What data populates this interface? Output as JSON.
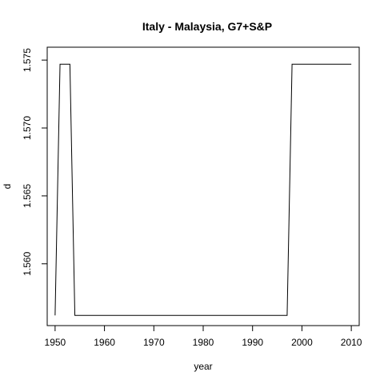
{
  "chart_data": {
    "type": "line",
    "title": "Italy - Malaysia, G7+S&P",
    "xlabel": "year",
    "ylabel": "d",
    "xlim": [
      1948.4,
      2011.6
    ],
    "ylim": [
      1.55545,
      1.57595
    ],
    "x_ticks": [
      1950,
      1960,
      1970,
      1980,
      1990,
      2000,
      2010
    ],
    "y_ticks": [
      1.56,
      1.565,
      1.57,
      1.575
    ],
    "x_tick_labels": [
      "1950",
      "1960",
      "1970",
      "1980",
      "1990",
      "2000",
      "2010"
    ],
    "y_tick_labels": [
      "1.560",
      "1.565",
      "1.570",
      "1.575"
    ],
    "grid": false,
    "series": [
      {
        "color": "#000000",
        "x": [
          1950,
          1951,
          1952,
          1953,
          1954,
          1955,
          1960,
          1970,
          1980,
          1990,
          1996,
          1997,
          1998,
          1999,
          2000,
          2005,
          2010
        ],
        "y": [
          1.5562,
          1.5747,
          1.5747,
          1.5747,
          1.5562,
          1.5562,
          1.5562,
          1.5562,
          1.5562,
          1.5562,
          1.5562,
          1.5562,
          1.5747,
          1.5747,
          1.5747,
          1.5747,
          1.5747
        ]
      }
    ]
  }
}
